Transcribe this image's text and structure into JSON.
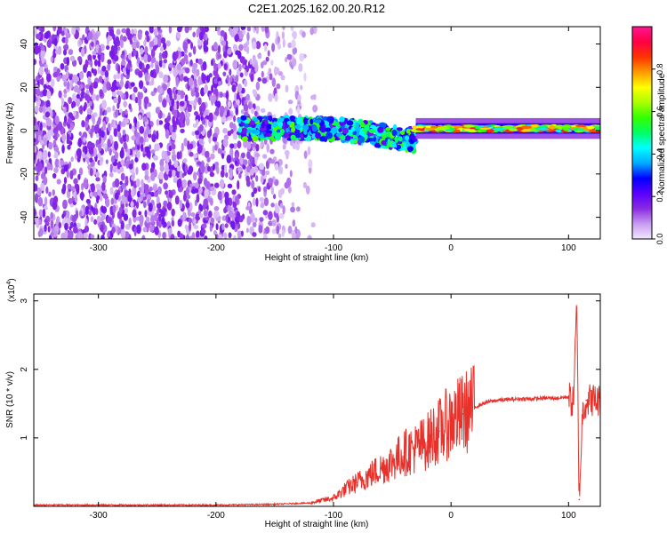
{
  "figure": {
    "title": "C2E1.2025.162.00.20.R12"
  },
  "chart_data": [
    {
      "type": "heatmap",
      "xlabel": "Height of straight line (km)",
      "ylabel": "Frequency (Hz)",
      "xlim": [
        -355,
        127
      ],
      "ylim": [
        -50,
        48
      ],
      "x_ticks": [
        -300,
        -200,
        -100,
        0,
        100
      ],
      "y_ticks": [
        -40,
        -20,
        0,
        20,
        40
      ],
      "colorbar": {
        "label": "Normalized spectral amplitude",
        "range": [
          0,
          1
        ],
        "ticks": [
          "0.0",
          "0.2",
          "0.4",
          "0.6",
          "0.8"
        ],
        "tick_values": [
          0.0,
          0.2,
          0.4,
          0.6,
          0.8
        ],
        "colors": [
          "#f0e8ff",
          "#c89cf0",
          "#8a2be2",
          "#5a00ff",
          "#0000ff",
          "#00aaff",
          "#00ffff",
          "#00ff66",
          "#33ff00",
          "#aaff00",
          "#ffff00",
          "#ff9900",
          "#ff3300",
          "#ff0044",
          "#ff1493"
        ]
      },
      "regions": [
        {
          "label": "scattered noise",
          "x_range": [
            -355,
            -115
          ],
          "freq_range": [
            -50,
            48
          ],
          "amplitude": 0.12
        },
        {
          "label": "ridge",
          "x_range": [
            -180,
            -30
          ],
          "freq_center": 1,
          "freq_width": 10,
          "amplitude": 0.4
        },
        {
          "label": "steady line",
          "x_range": [
            -30,
            127
          ],
          "freq_center": 1,
          "freq_width": 4,
          "amplitude": 0.8
        }
      ]
    },
    {
      "type": "line",
      "xlabel": "Height of straight line (km)",
      "ylabel": "SNR (10 * v/v)",
      "yscale_label": "(x10",
      "yscale_exp": "4",
      "xlim": [
        -355,
        127
      ],
      "ylim": [
        0,
        3.1
      ],
      "x_ticks": [
        -300,
        -200,
        -100,
        0,
        100
      ],
      "y_ticks": [
        1,
        2,
        3
      ],
      "series": [
        {
          "color": "#e8312a",
          "x": [
            -355,
            -300,
            -250,
            -200,
            -150,
            -120,
            -100,
            -90,
            -80,
            -70,
            -60,
            -50,
            -40,
            -30,
            -20,
            -15,
            -10,
            0,
            10,
            20,
            30,
            40,
            50,
            60,
            70,
            80,
            90,
            100,
            104,
            107,
            109,
            112,
            115,
            120,
            127
          ],
          "y": [
            0.02,
            0.02,
            0.02,
            0.02,
            0.03,
            0.05,
            0.12,
            0.25,
            0.35,
            0.45,
            0.55,
            0.65,
            0.78,
            0.85,
            0.95,
            1.05,
            1.1,
            1.25,
            1.35,
            1.45,
            1.52,
            1.55,
            1.56,
            1.57,
            1.57,
            1.58,
            1.58,
            1.6,
            1.5,
            2.9,
            0.1,
            1.4,
            1.55,
            1.56,
            1.54
          ]
        }
      ]
    }
  ]
}
